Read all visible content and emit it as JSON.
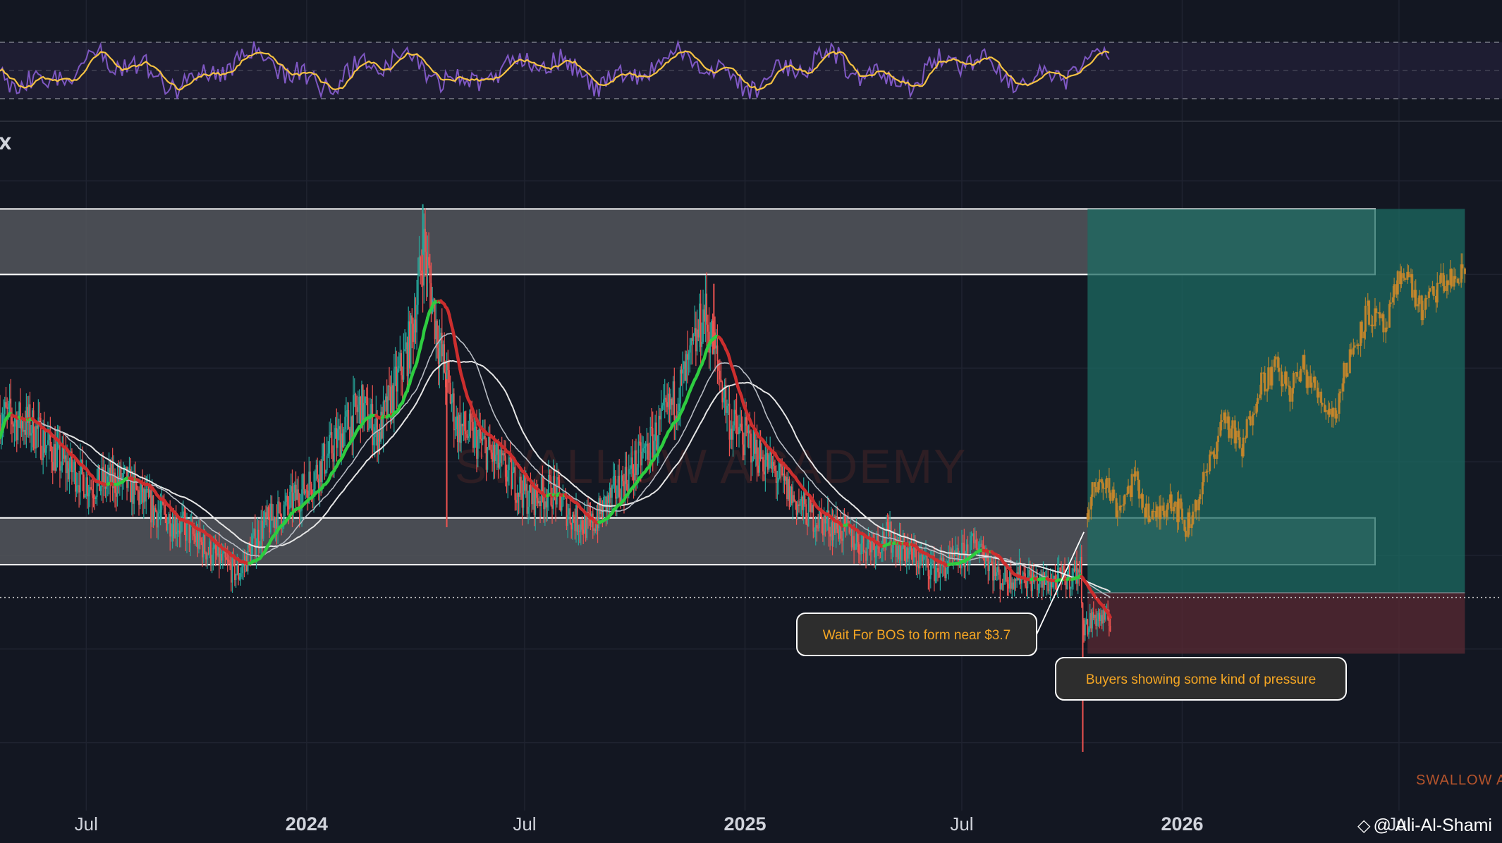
{
  "chart_data": {
    "type": "line",
    "title": "",
    "xlabel": "",
    "ylabel": "",
    "x_ticks": [
      {
        "label": "Jul",
        "date": "2023-07-01",
        "bold": false
      },
      {
        "label": "2024",
        "date": "2024-01-01",
        "bold": true
      },
      {
        "label": "Jul",
        "date": "2024-07-01",
        "bold": false
      },
      {
        "label": "2025",
        "date": "2025-01-01",
        "bold": true
      },
      {
        "label": "Jul",
        "date": "2025-07-01",
        "bold": false
      },
      {
        "label": "2026",
        "date": "2026-01-01",
        "bold": true
      },
      {
        "label": "Jul",
        "date": "2026-07-01",
        "bold": false
      }
    ],
    "x_range": [
      "2023-04-20",
      "2026-09-25"
    ],
    "series": [
      {
        "color": "#e3555b",
        "x": [
          "2023-04-20",
          "2023-05-15",
          "2023-06-10",
          "2023-07-05",
          "2023-08-01",
          "2023-08-25",
          "2023-09-20",
          "2023-10-15",
          "2023-11-05",
          "2023-11-25",
          "2023-12-15",
          "2024-01-05",
          "2024-01-25",
          "2024-02-15",
          "2024-03-01",
          "2024-03-15",
          "2024-03-28",
          "2024-04-08",
          "2024-04-20",
          "2024-05-05",
          "2024-05-25",
          "2024-06-15",
          "2024-07-05",
          "2024-07-25",
          "2024-08-10",
          "2024-08-25",
          "2024-09-10",
          "2024-09-28",
          "2024-10-15",
          "2024-11-01",
          "2024-11-15",
          "2024-11-28",
          "2024-12-08",
          "2024-12-20",
          "2025-01-05",
          "2025-01-25",
          "2025-02-10",
          "2025-02-28",
          "2025-03-20",
          "2025-04-10",
          "2025-05-01",
          "2025-05-20",
          "2025-06-10",
          "2025-06-28",
          "2025-07-15",
          "2025-08-01",
          "2025-08-20",
          "2025-09-05",
          "2025-09-25",
          "2025-10-08",
          "2025-10-11",
          "2025-10-20",
          "2025-11-02"
        ],
        "y": [
          4.5,
          4.4,
          4.0,
          3.75,
          3.8,
          3.5,
          3.3,
          3.0,
          2.8,
          3.3,
          3.5,
          3.8,
          4.2,
          4.6,
          4.3,
          4.8,
          5.3,
          6.3,
          5.3,
          4.4,
          4.2,
          3.9,
          3.6,
          3.7,
          3.4,
          3.3,
          3.6,
          3.9,
          4.2,
          4.6,
          5.0,
          5.6,
          5.1,
          4.4,
          4.2,
          3.9,
          3.6,
          3.4,
          3.3,
          3.1,
          3.2,
          3.0,
          2.85,
          2.95,
          3.15,
          2.75,
          2.8,
          2.7,
          2.75,
          2.85,
          2.2,
          2.35,
          2.3
        ]
      }
    ],
    "zones": [
      {
        "name": "resistance",
        "y_bottom": 6.0,
        "y_top": 6.7
      },
      {
        "name": "support",
        "y_bottom": 2.9,
        "y_top": 3.4
      }
    ],
    "position": {
      "entry": 2.6,
      "target": 6.7,
      "stop": 1.95,
      "start": "2025-10-14",
      "end": "2026-08-25"
    },
    "projection": {
      "color": "#c8872a",
      "x": [
        "2025-10-14",
        "2025-10-25",
        "2025-11-08",
        "2025-11-22",
        "2025-12-08",
        "2025-12-22",
        "2026-01-05",
        "2026-01-20",
        "2026-02-05",
        "2026-02-20",
        "2026-03-05",
        "2026-03-20",
        "2026-04-01",
        "2026-04-12",
        "2026-04-25",
        "2026-05-08",
        "2026-05-20",
        "2026-06-05",
        "2026-06-20",
        "2026-07-05",
        "2026-07-20",
        "2026-08-05",
        "2026-08-25"
      ],
      "y": [
        3.45,
        3.9,
        3.5,
        3.8,
        3.35,
        3.65,
        3.3,
        3.8,
        4.5,
        4.1,
        4.8,
        5.0,
        4.75,
        5.0,
        4.7,
        4.5,
        5.1,
        5.6,
        5.4,
        6.1,
        5.6,
        5.9,
        6.0
      ]
    },
    "current_price_line": 2.55,
    "annotations": [
      {
        "text": "Wait For BOS to form near $3.7",
        "date": "2025-10-11",
        "value": 2.45
      },
      {
        "text": "Buyers showing some kind of pressure",
        "date": "2025-10-11",
        "value": 1.55
      }
    ],
    "grid": true,
    "legend": "none"
  },
  "watermarks": {
    "center": "SWALLOW ACADEMY",
    "corner": "SWALLOW A",
    "symbol_fragment": "X"
  },
  "credit": {
    "logo_icon": "binance-diamond-icon",
    "handle": "@ Ali-Al-Shami"
  },
  "colors": {
    "background": "#131722",
    "up": "#26a69a",
    "down": "#ef5350",
    "ema_bull": "#2ecc40",
    "ema_bear": "#cc2e2e",
    "ma_light": "#e6e6e6",
    "rsi": "#7e57c2",
    "rsi_ma": "#f5c242",
    "zone_fill": "#54565c",
    "target_fill": "#1c6b61",
    "stop_fill": "#5a2a33"
  }
}
